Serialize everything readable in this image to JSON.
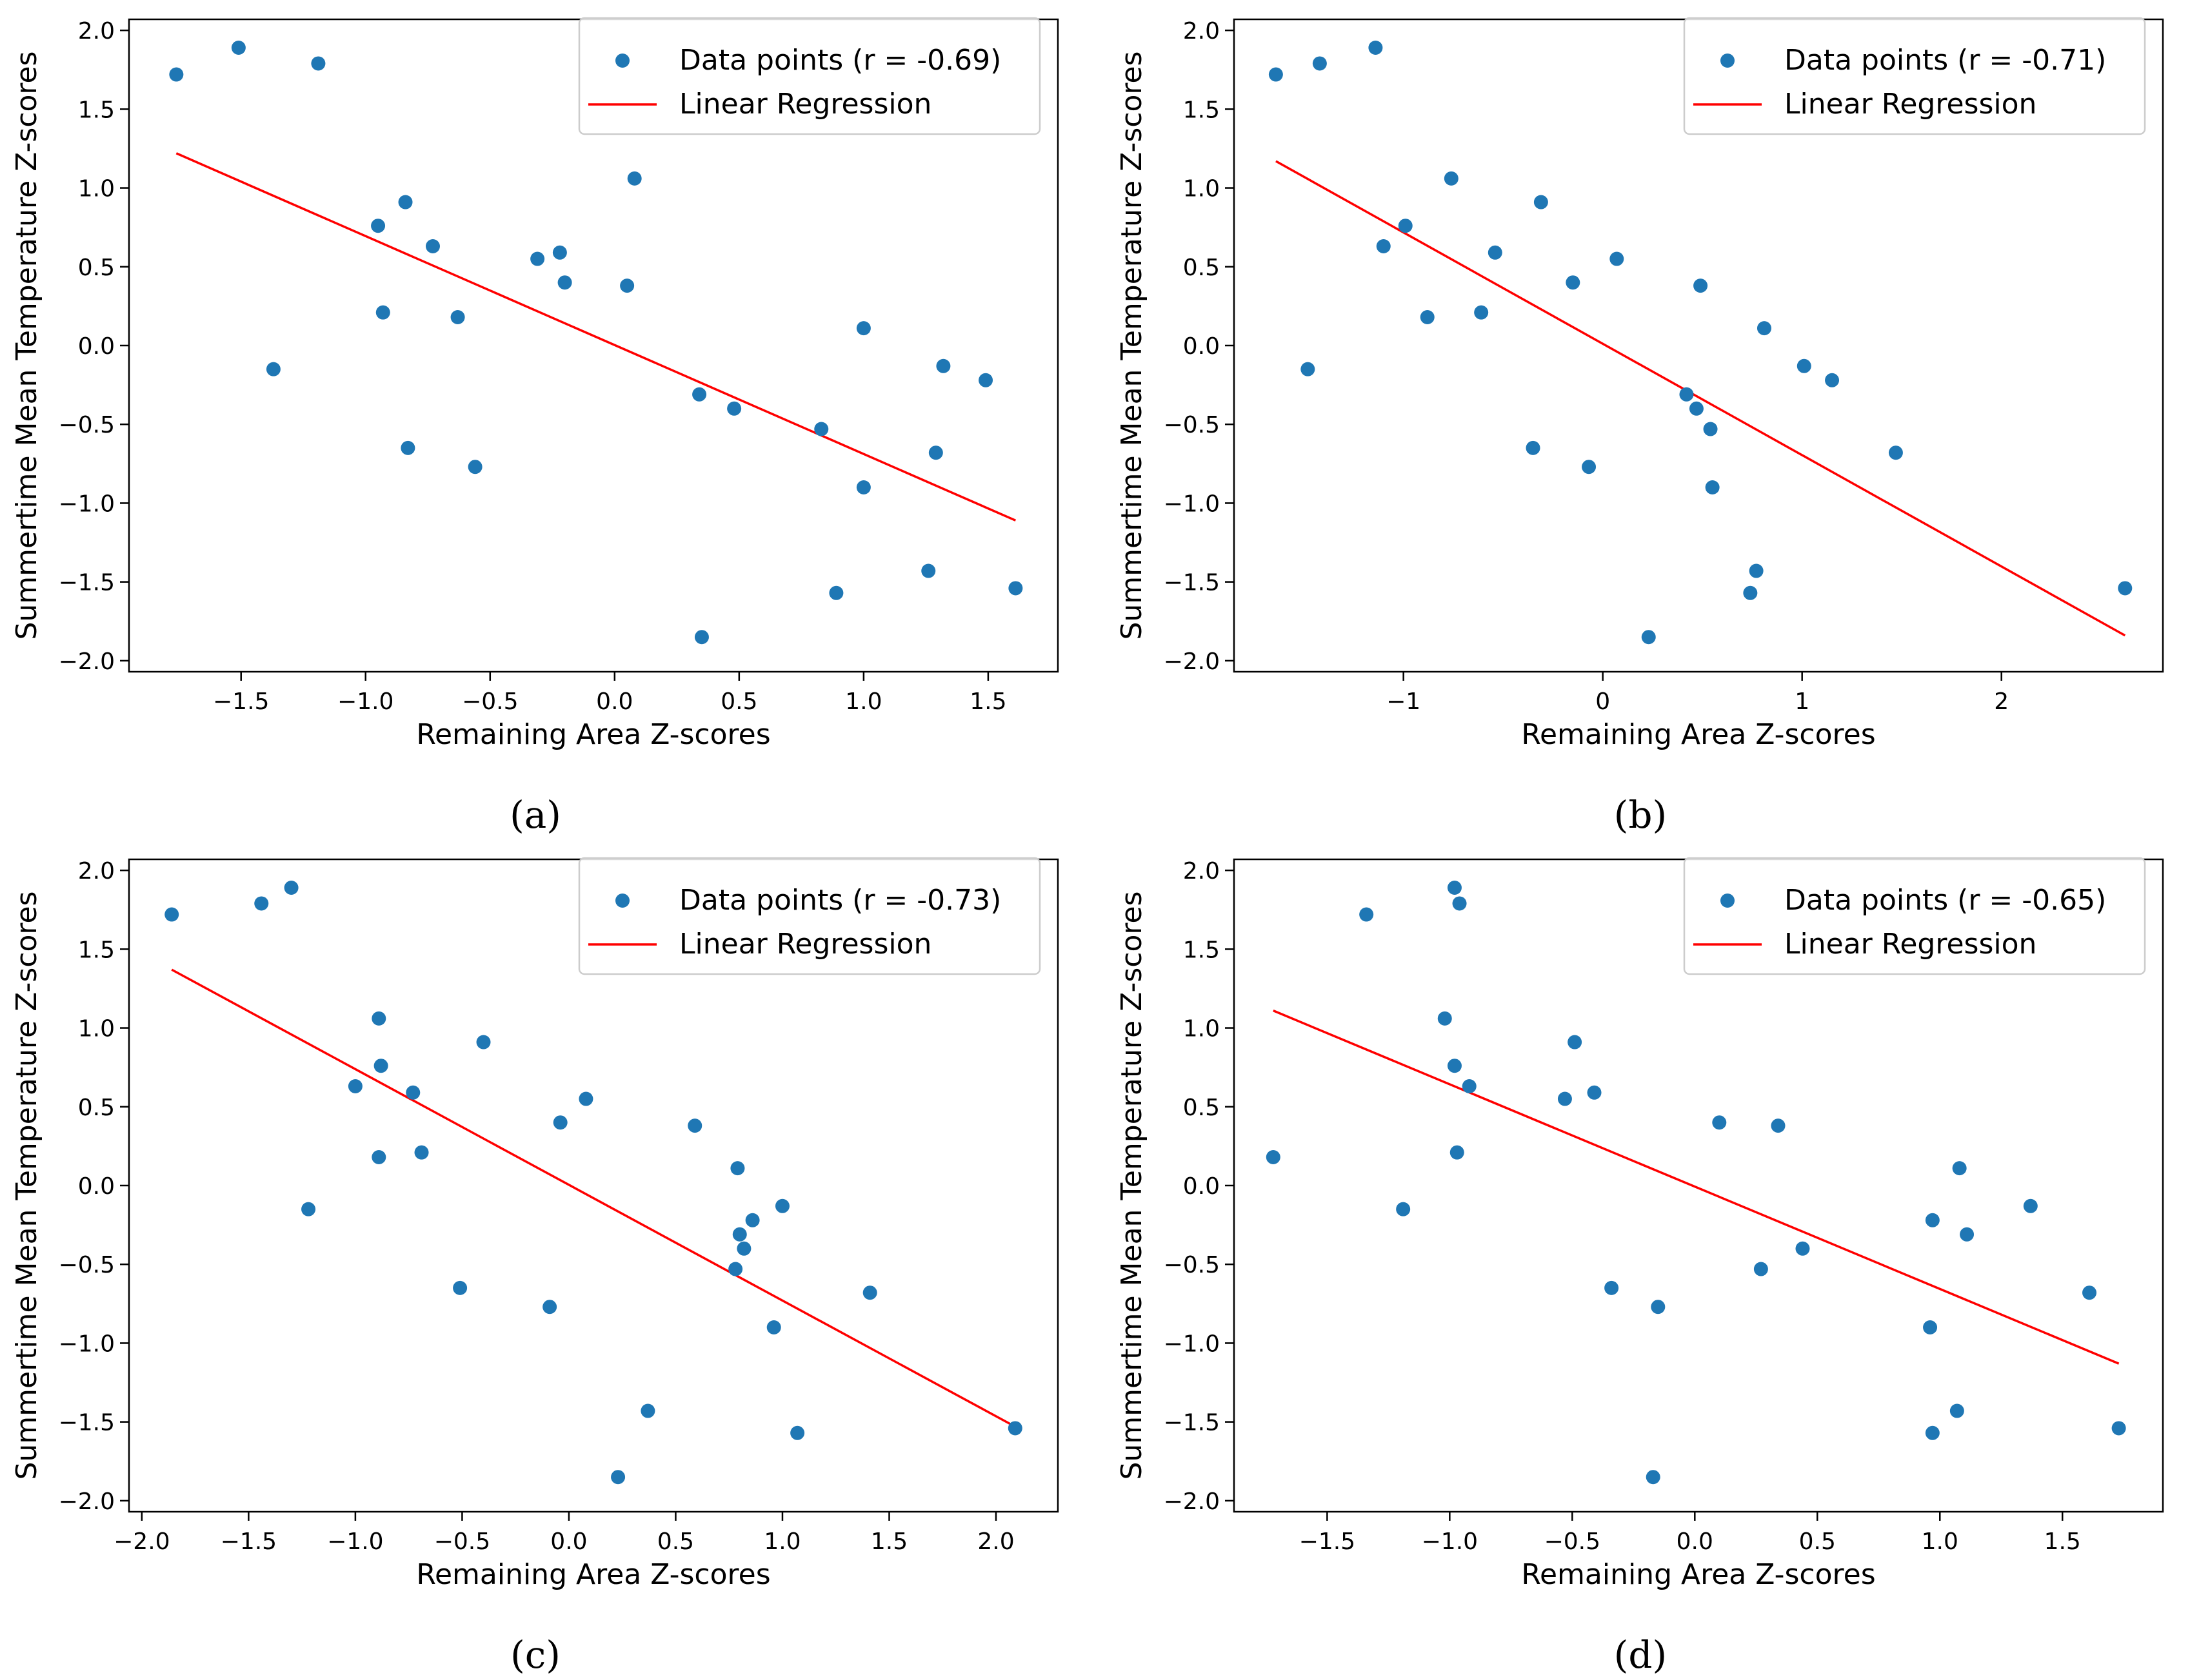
{
  "chart_data": [
    {
      "type": "scatter",
      "panel_label": "(a)",
      "xlabel": "Remaining Area Z-scores",
      "ylabel": "Summertime Mean Temperature Z-scores",
      "xlim": [
        -1.95,
        1.78
      ],
      "ylim": [
        -2.07,
        2.07
      ],
      "xticks": [
        -1.5,
        -1.0,
        -0.5,
        0.0,
        0.5,
        1.0,
        1.5
      ],
      "xtick_labels": [
        "−1.5",
        "−1.0",
        "−0.5",
        "0.0",
        "0.5",
        "1.0",
        "1.5"
      ],
      "yticks": [
        -2.0,
        -1.5,
        -1.0,
        -0.5,
        0.0,
        0.5,
        1.0,
        1.5,
        2.0
      ],
      "ytick_labels": [
        "−2.0",
        "−1.5",
        "−1.0",
        "−0.5",
        "0.0",
        "0.5",
        "1.0",
        "1.5",
        "2.0"
      ],
      "legend": {
        "position": "top-right",
        "scatter_label": "Data points (r = -0.69)",
        "line_label": "Linear Regression"
      },
      "points": {
        "x": [
          -1.76,
          -1.51,
          -1.19,
          -1.37,
          -0.95,
          -0.84,
          -0.73,
          -0.93,
          -0.63,
          -0.83,
          -0.56,
          -0.31,
          -0.22,
          -0.2,
          0.08,
          0.05,
          0.34,
          0.48,
          0.83,
          1.0,
          1.32,
          1.49,
          1.0,
          1.29,
          0.89,
          1.26,
          1.61,
          0.35
        ],
        "y": [
          1.72,
          1.89,
          1.79,
          -0.15,
          0.76,
          0.91,
          0.63,
          0.21,
          0.18,
          -0.65,
          -0.77,
          0.55,
          0.59,
          0.4,
          1.06,
          0.38,
          -0.31,
          -0.4,
          -0.53,
          0.11,
          -0.13,
          -0.22,
          -0.9,
          -0.68,
          -1.57,
          -1.43,
          -1.54,
          -1.85
        ]
      },
      "regression": {
        "x": [
          -1.76,
          1.61
        ],
        "y": [
          1.22,
          -1.11
        ]
      },
      "colors": {
        "points": "#1f77b4",
        "line": "#ff0000"
      }
    },
    {
      "type": "scatter",
      "panel_label": "(b)",
      "xlabel": "Remaining Area Z-scores",
      "ylabel": "Summertime Mean Temperature Z-scores",
      "xlim": [
        -1.85,
        2.81
      ],
      "ylim": [
        -2.07,
        2.07
      ],
      "xticks": [
        -1,
        0,
        1,
        2
      ],
      "xtick_labels": [
        "−1",
        "0",
        "1",
        "2"
      ],
      "yticks": [
        -2.0,
        -1.5,
        -1.0,
        -0.5,
        0.0,
        0.5,
        1.0,
        1.5,
        2.0
      ],
      "ytick_labels": [
        "−2.0",
        "−1.5",
        "−1.0",
        "−0.5",
        "0.0",
        "0.5",
        "1.0",
        "1.5",
        "2.0"
      ],
      "legend": {
        "position": "top-right",
        "scatter_label": "Data points (r = -0.71)",
        "line_label": "Linear Regression"
      },
      "points": {
        "x": [
          -1.64,
          -1.42,
          -1.14,
          -1.48,
          -0.99,
          -0.76,
          -1.1,
          -0.88,
          -0.31,
          -0.54,
          -0.61,
          -0.15,
          0.07,
          0.49,
          0.81,
          1.01,
          1.15,
          0.42,
          0.47,
          0.54,
          0.55,
          0.77,
          0.74,
          -0.07,
          -0.35,
          1.47,
          2.62,
          0.23
        ],
        "y": [
          1.72,
          1.79,
          1.89,
          -0.15,
          0.76,
          1.06,
          0.63,
          0.18,
          0.91,
          0.59,
          0.21,
          0.4,
          0.55,
          0.38,
          0.11,
          -0.13,
          -0.22,
          -0.31,
          -0.4,
          -0.53,
          -0.9,
          -1.43,
          -1.57,
          -0.77,
          -0.65,
          -0.68,
          -1.54,
          -1.85
        ]
      },
      "regression": {
        "x": [
          -1.64,
          2.62
        ],
        "y": [
          1.17,
          -1.84
        ]
      },
      "colors": {
        "points": "#1f77b4",
        "line": "#ff0000"
      }
    },
    {
      "type": "scatter",
      "panel_label": "(c)",
      "xlabel": "Remaining Area Z-scores",
      "ylabel": "Summertime Mean Temperature Z-scores",
      "xlim": [
        -2.06,
        2.29
      ],
      "ylim": [
        -2.07,
        2.07
      ],
      "xticks": [
        -2.0,
        -1.5,
        -1.0,
        -0.5,
        0.0,
        0.5,
        1.0,
        1.5,
        2.0
      ],
      "xtick_labels": [
        "−2.0",
        "−1.5",
        "−1.0",
        "−0.5",
        "0.0",
        "0.5",
        "1.0",
        "1.5",
        "2.0"
      ],
      "yticks": [
        -2.0,
        -1.5,
        -1.0,
        -0.5,
        0.0,
        0.5,
        1.0,
        1.5,
        2.0
      ],
      "ytick_labels": [
        "−2.0",
        "−1.5",
        "−1.0",
        "−0.5",
        "0.0",
        "0.5",
        "1.0",
        "1.5",
        "2.0"
      ],
      "legend": {
        "position": "top-right",
        "scatter_label": "Data points (r = -0.73)",
        "line_label": "Linear Regression"
      },
      "points": {
        "x": [
          -1.86,
          -1.44,
          -1.3,
          -1.22,
          -0.89,
          -0.88,
          -1.0,
          -0.73,
          -0.89,
          -0.69,
          -0.4,
          0.08,
          -0.04,
          0.59,
          0.79,
          0.8,
          0.86,
          1.0,
          0.82,
          0.78,
          1.41,
          0.96,
          -0.51,
          -0.09,
          0.37,
          1.07,
          2.09,
          0.23
        ],
        "y": [
          1.72,
          1.79,
          1.89,
          -0.15,
          1.06,
          0.76,
          0.63,
          0.59,
          0.18,
          0.21,
          0.91,
          0.55,
          0.4,
          0.38,
          0.11,
          -0.31,
          -0.22,
          -0.13,
          -0.4,
          -0.53,
          -0.68,
          -0.9,
          -0.65,
          -0.77,
          -1.43,
          -1.57,
          -1.54,
          -1.85
        ]
      },
      "regression": {
        "x": [
          -1.86,
          2.09
        ],
        "y": [
          1.37,
          -1.53
        ]
      },
      "colors": {
        "points": "#1f77b4",
        "line": "#ff0000"
      }
    },
    {
      "type": "scatter",
      "panel_label": "(d)",
      "xlabel": "Remaining Area Z-scores",
      "ylabel": "Summertime Mean Temperature Z-scores",
      "xlim": [
        -1.88,
        1.91
      ],
      "ylim": [
        -2.07,
        2.07
      ],
      "xticks": [
        -1.5,
        -1.0,
        -0.5,
        0.0,
        0.5,
        1.0,
        1.5
      ],
      "xtick_labels": [
        "−1.5",
        "−1.0",
        "−0.5",
        "0.0",
        "0.5",
        "1.0",
        "1.5"
      ],
      "yticks": [
        -2.0,
        -1.5,
        -1.0,
        -0.5,
        0.0,
        0.5,
        1.0,
        1.5,
        2.0
      ],
      "ytick_labels": [
        "−2.0",
        "−1.5",
        "−1.0",
        "−0.5",
        "0.0",
        "0.5",
        "1.0",
        "1.5",
        "2.0"
      ],
      "legend": {
        "position": "top-right",
        "scatter_label": "Data points (r = -0.65)",
        "line_label": "Linear Regression"
      },
      "points": {
        "x": [
          -1.72,
          -1.34,
          -0.98,
          -0.96,
          -1.19,
          -1.02,
          -0.98,
          -0.92,
          -0.97,
          -0.49,
          -0.53,
          -0.41,
          0.1,
          0.34,
          1.08,
          0.97,
          1.37,
          1.11,
          0.44,
          0.27,
          1.61,
          0.96,
          -0.34,
          -0.15,
          1.07,
          0.97,
          1.73,
          -0.17
        ],
        "y": [
          0.18,
          1.72,
          1.89,
          1.79,
          -0.15,
          1.06,
          0.76,
          0.63,
          0.21,
          0.91,
          0.55,
          0.59,
          0.4,
          0.38,
          0.11,
          -0.22,
          -0.13,
          -0.31,
          -0.4,
          -0.53,
          -0.68,
          -0.9,
          -0.65,
          -0.77,
          -1.43,
          -1.57,
          -1.54,
          -1.85
        ]
      },
      "regression": {
        "x": [
          -1.72,
          1.73
        ],
        "y": [
          1.11,
          -1.13
        ]
      },
      "colors": {
        "points": "#1f77b4",
        "line": "#ff0000"
      }
    }
  ]
}
